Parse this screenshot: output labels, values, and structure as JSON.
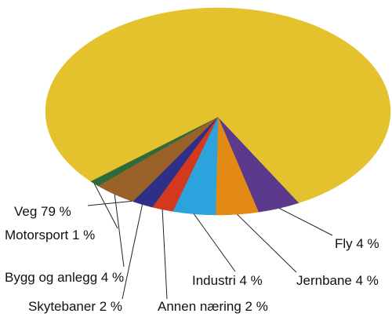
{
  "chart_data": {
    "type": "pie",
    "title": "",
    "slices": [
      {
        "label": "Veg",
        "value": 79,
        "text": "Veg 79 %",
        "color": "#E4C22E"
      },
      {
        "label": "Fly",
        "value": 4,
        "text": "Fly 4 %",
        "color": "#5B3A8E"
      },
      {
        "label": "Jernbane",
        "value": 4,
        "text": "Jernbane 4 %",
        "color": "#E38A14"
      },
      {
        "label": "Industri",
        "value": 4,
        "text": "Industri 4 %",
        "color": "#2CA3DD"
      },
      {
        "label": "Annen næring",
        "value": 2,
        "text": "Annen næring 2 %",
        "color": "#D2391F"
      },
      {
        "label": "Skytebaner",
        "value": 2,
        "text": "Skytebaner 2 %",
        "color": "#2E2F86"
      },
      {
        "label": "Bygg og anlegg",
        "value": 4,
        "text": "Bygg og anlegg 4 %",
        "color": "#9A6129"
      },
      {
        "label": "Motorsport",
        "value": 1,
        "text": "Motorsport 1 %",
        "color": "#2F6B3A"
      }
    ]
  }
}
